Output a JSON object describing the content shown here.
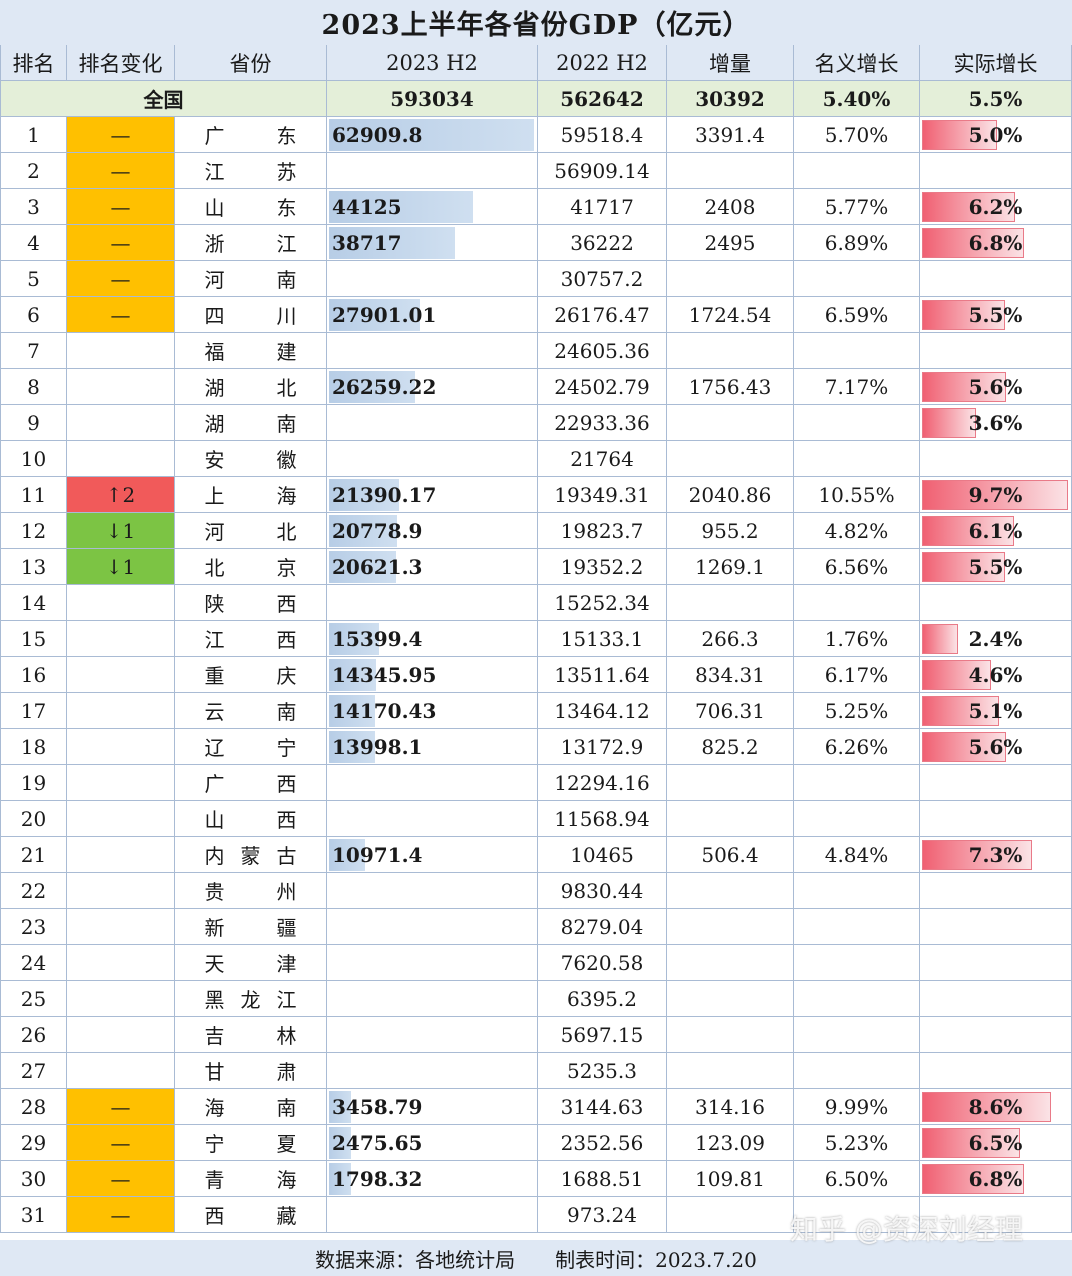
{
  "title": "2023上半年各省份GDP（亿元）",
  "headers": [
    "排名",
    "排名变化",
    "省份",
    "2023 H2",
    "2022 H2",
    "增量",
    "名义增长",
    "实际增长"
  ],
  "national": {
    "label": "全国",
    "gdp2023": "593034",
    "gdp2022": "562642",
    "inc": "30392",
    "nominal": "5.40%",
    "real": "5.5%"
  },
  "rows": [
    {
      "rank": "1",
      "change": "—",
      "chg": "orange",
      "prov": [
        "广",
        "东"
      ],
      "gdp2023": "62909.8",
      "gdp23_val": 62909.8,
      "gdp2022": "59518.4",
      "inc": "3391.4",
      "nominal": "5.70%",
      "real": "5.0%",
      "real_val": 5.0
    },
    {
      "rank": "2",
      "change": "—",
      "chg": "orange",
      "prov": [
        "江",
        "苏"
      ],
      "gdp2023": "",
      "gdp2022": "56909.14",
      "inc": "",
      "nominal": "",
      "real": ""
    },
    {
      "rank": "3",
      "change": "—",
      "chg": "orange",
      "prov": [
        "山",
        "东"
      ],
      "gdp2023": "44125",
      "gdp23_val": 44125,
      "gdp2022": "41717",
      "inc": "2408",
      "nominal": "5.77%",
      "real": "6.2%",
      "real_val": 6.2
    },
    {
      "rank": "4",
      "change": "—",
      "chg": "orange",
      "prov": [
        "浙",
        "江"
      ],
      "gdp2023": "38717",
      "gdp23_val": 38717,
      "gdp2022": "36222",
      "inc": "2495",
      "nominal": "6.89%",
      "real": "6.8%",
      "real_val": 6.8
    },
    {
      "rank": "5",
      "change": "—",
      "chg": "orange",
      "prov": [
        "河",
        "南"
      ],
      "gdp2023": "",
      "gdp2022": "30757.2",
      "inc": "",
      "nominal": "",
      "real": ""
    },
    {
      "rank": "6",
      "change": "—",
      "chg": "orange",
      "prov": [
        "四",
        "川"
      ],
      "gdp2023": "27901.01",
      "gdp23_val": 27901.01,
      "gdp2022": "26176.47",
      "inc": "1724.54",
      "nominal": "6.59%",
      "real": "5.5%",
      "real_val": 5.5
    },
    {
      "rank": "7",
      "change": "",
      "chg": "",
      "prov": [
        "福",
        "建"
      ],
      "gdp2023": "",
      "gdp2022": "24605.36",
      "inc": "",
      "nominal": "",
      "real": ""
    },
    {
      "rank": "8",
      "change": "",
      "chg": "",
      "prov": [
        "湖",
        "北"
      ],
      "gdp2023": "26259.22",
      "gdp23_val": 26259.22,
      "gdp2022": "24502.79",
      "inc": "1756.43",
      "nominal": "7.17%",
      "real": "5.6%",
      "real_val": 5.6
    },
    {
      "rank": "9",
      "change": "",
      "chg": "",
      "prov": [
        "湖",
        "南"
      ],
      "gdp2023": "",
      "gdp2022": "22933.36",
      "inc": "",
      "nominal": "",
      "real": "3.6%",
      "real_val": 3.6
    },
    {
      "rank": "10",
      "change": "",
      "chg": "",
      "prov": [
        "安",
        "徽"
      ],
      "gdp2023": "",
      "gdp2022": "21764",
      "inc": "",
      "nominal": "",
      "real": ""
    },
    {
      "rank": "11",
      "change": "↑2",
      "chg": "red",
      "prov": [
        "上",
        "海"
      ],
      "gdp2023": "21390.17",
      "gdp23_val": 21390.17,
      "gdp2022": "19349.31",
      "inc": "2040.86",
      "nominal": "10.55%",
      "real": "9.7%",
      "real_val": 9.7
    },
    {
      "rank": "12",
      "change": "↓1",
      "chg": "green",
      "prov": [
        "河",
        "北"
      ],
      "gdp2023": "20778.9",
      "gdp23_val": 20778.9,
      "gdp2022": "19823.7",
      "inc": "955.2",
      "nominal": "4.82%",
      "real": "6.1%",
      "real_val": 6.1
    },
    {
      "rank": "13",
      "change": "↓1",
      "chg": "green",
      "prov": [
        "北",
        "京"
      ],
      "gdp2023": "20621.3",
      "gdp23_val": 20621.3,
      "gdp2022": "19352.2",
      "inc": "1269.1",
      "nominal": "6.56%",
      "real": "5.5%",
      "real_val": 5.5
    },
    {
      "rank": "14",
      "change": "",
      "chg": "",
      "prov": [
        "陕",
        "西"
      ],
      "gdp2023": "",
      "gdp2022": "15252.34",
      "inc": "",
      "nominal": "",
      "real": ""
    },
    {
      "rank": "15",
      "change": "",
      "chg": "",
      "prov": [
        "江",
        "西"
      ],
      "gdp2023": "15399.4",
      "gdp23_val": 15399.4,
      "gdp2022": "15133.1",
      "inc": "266.3",
      "nominal": "1.76%",
      "real": "2.4%",
      "real_val": 2.4
    },
    {
      "rank": "16",
      "change": "",
      "chg": "",
      "prov": [
        "重",
        "庆"
      ],
      "gdp2023": "14345.95",
      "gdp23_val": 14345.95,
      "gdp2022": "13511.64",
      "inc": "834.31",
      "nominal": "6.17%",
      "real": "4.6%",
      "real_val": 4.6
    },
    {
      "rank": "17",
      "change": "",
      "chg": "",
      "prov": [
        "云",
        "南"
      ],
      "gdp2023": "14170.43",
      "gdp23_val": 14170.43,
      "gdp2022": "13464.12",
      "inc": "706.31",
      "nominal": "5.25%",
      "real": "5.1%",
      "real_val": 5.1
    },
    {
      "rank": "18",
      "change": "",
      "chg": "",
      "prov": [
        "辽",
        "宁"
      ],
      "gdp2023": "13998.1",
      "gdp23_val": 13998.1,
      "gdp2022": "13172.9",
      "inc": "825.2",
      "nominal": "6.26%",
      "real": "5.6%",
      "real_val": 5.6
    },
    {
      "rank": "19",
      "change": "",
      "chg": "",
      "prov": [
        "广",
        "西"
      ],
      "gdp2023": "",
      "gdp2022": "12294.16",
      "inc": "",
      "nominal": "",
      "real": ""
    },
    {
      "rank": "20",
      "change": "",
      "chg": "",
      "prov": [
        "山",
        "西"
      ],
      "gdp2023": "",
      "gdp2022": "11568.94",
      "inc": "",
      "nominal": "",
      "real": ""
    },
    {
      "rank": "21",
      "change": "",
      "chg": "",
      "prov": [
        "内",
        "蒙",
        "古"
      ],
      "gdp2023": "10971.4",
      "gdp23_val": 10971.4,
      "gdp2022": "10465",
      "inc": "506.4",
      "nominal": "4.84%",
      "real": "7.3%",
      "real_val": 7.3
    },
    {
      "rank": "22",
      "change": "",
      "chg": "",
      "prov": [
        "贵",
        "州"
      ],
      "gdp2023": "",
      "gdp2022": "9830.44",
      "inc": "",
      "nominal": "",
      "real": ""
    },
    {
      "rank": "23",
      "change": "",
      "chg": "",
      "prov": [
        "新",
        "疆"
      ],
      "gdp2023": "",
      "gdp2022": "8279.04",
      "inc": "",
      "nominal": "",
      "real": ""
    },
    {
      "rank": "24",
      "change": "",
      "chg": "",
      "prov": [
        "天",
        "津"
      ],
      "gdp2023": "",
      "gdp2022": "7620.58",
      "inc": "",
      "nominal": "",
      "real": ""
    },
    {
      "rank": "25",
      "change": "",
      "chg": "",
      "prov": [
        "黑",
        "龙",
        "江"
      ],
      "gdp2023": "",
      "gdp2022": "6395.2",
      "inc": "",
      "nominal": "",
      "real": ""
    },
    {
      "rank": "26",
      "change": "",
      "chg": "",
      "prov": [
        "吉",
        "林"
      ],
      "gdp2023": "",
      "gdp2022": "5697.15",
      "inc": "",
      "nominal": "",
      "real": ""
    },
    {
      "rank": "27",
      "change": "",
      "chg": "",
      "prov": [
        "甘",
        "肃"
      ],
      "gdp2023": "",
      "gdp2022": "5235.3",
      "inc": "",
      "nominal": "",
      "real": ""
    },
    {
      "rank": "28",
      "change": "—",
      "chg": "orange",
      "prov": [
        "海",
        "南"
      ],
      "gdp2023": "3458.79",
      "gdp23_val": 3458.79,
      "gdp2022": "3144.63",
      "inc": "314.16",
      "nominal": "9.99%",
      "real": "8.6%",
      "real_val": 8.6
    },
    {
      "rank": "29",
      "change": "—",
      "chg": "orange",
      "prov": [
        "宁",
        "夏"
      ],
      "gdp2023": "2475.65",
      "gdp23_val": 2475.65,
      "gdp2022": "2352.56",
      "inc": "123.09",
      "nominal": "5.23%",
      "real": "6.5%",
      "real_val": 6.5
    },
    {
      "rank": "30",
      "change": "—",
      "chg": "orange",
      "prov": [
        "青",
        "海"
      ],
      "gdp2023": "1798.32",
      "gdp23_val": 1798.32,
      "gdp2022": "1688.51",
      "inc": "109.81",
      "nominal": "6.50%",
      "real": "6.8%",
      "real_val": 6.8
    },
    {
      "rank": "31",
      "change": "—",
      "chg": "orange",
      "prov": [
        "西",
        "藏"
      ],
      "gdp2023": "",
      "gdp2022": "973.24",
      "inc": "",
      "nominal": "",
      "real": ""
    }
  ],
  "footer": {
    "source": "数据来源：各地统计局",
    "date": "制表时间：2023.7.20"
  },
  "watermark": "知乎 @资深刘经理",
  "colors": {
    "orange": "#ffc000",
    "red": "#f15a5a",
    "green": "#7cc444"
  }
}
